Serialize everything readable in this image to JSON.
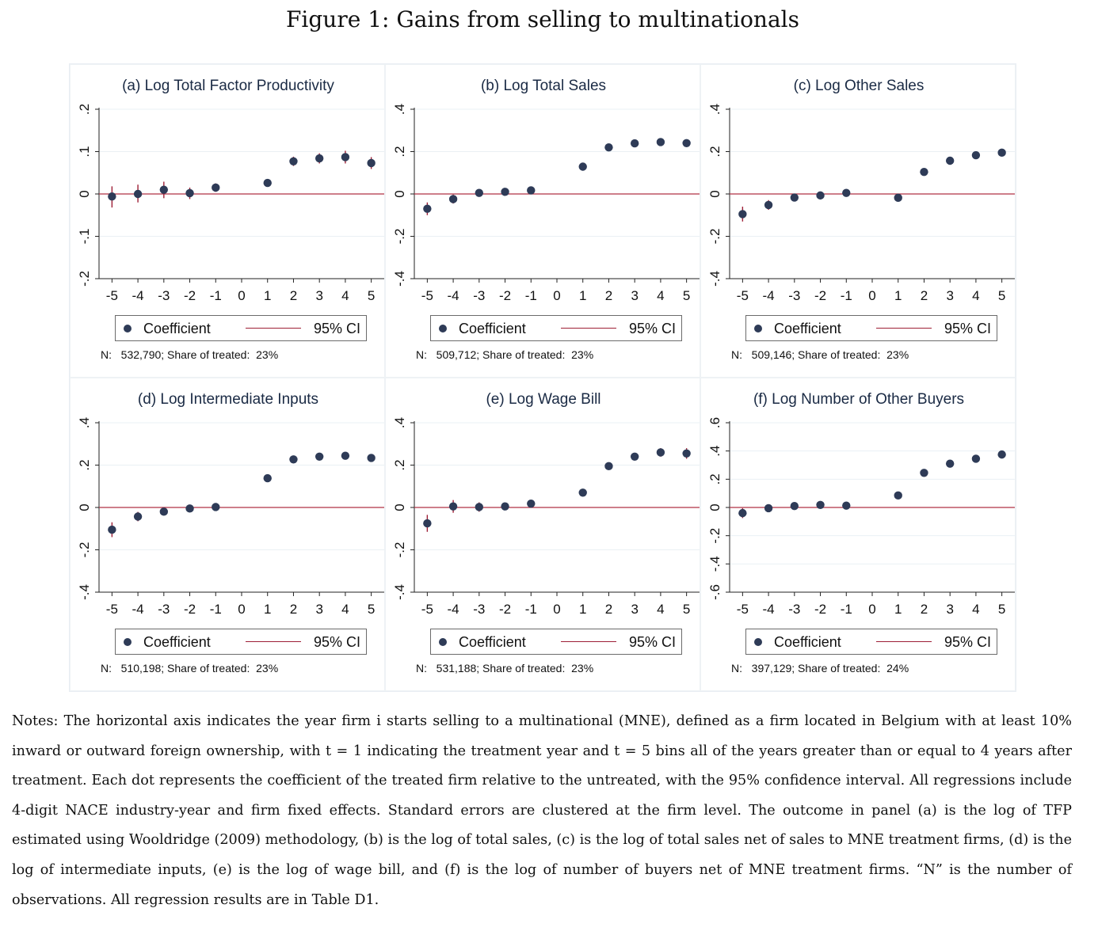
{
  "figure_title": "Figure 1:  Gains from selling to multinationals",
  "legend": {
    "coef_label": "Coefficient",
    "ci_label": "95% CI"
  },
  "colors": {
    "marker": "#2e3b57",
    "ci": "#9e1f36",
    "zero_line": "#b03045",
    "grid": "#eaf0f4"
  },
  "chart_data": [
    {
      "type": "scatter",
      "title": "(a) Log Total Factor Productivity",
      "x": [
        -5,
        -4,
        -3,
        -2,
        -1,
        1,
        2,
        3,
        4,
        5
      ],
      "xticks": [
        -5,
        -4,
        -3,
        -2,
        -1,
        0,
        1,
        2,
        3,
        4,
        5
      ],
      "ylim": [
        -0.2,
        0.2
      ],
      "yticks": [
        -0.2,
        -0.1,
        0,
        0.1,
        0.2
      ],
      "ytick_labels": [
        "-.2",
        "-.1",
        "0",
        ".1",
        ".2"
      ],
      "series": [
        {
          "name": "Coefficient",
          "values": [
            -0.006,
            0.0,
            0.01,
            0.002,
            0.015,
            0.026,
            0.077,
            0.084,
            0.087,
            0.073
          ]
        },
        {
          "name": "95% CI",
          "low": [
            -0.032,
            -0.02,
            -0.01,
            -0.012,
            0.005,
            0.018,
            0.066,
            0.072,
            0.072,
            0.059
          ],
          "high": [
            0.018,
            0.022,
            0.029,
            0.015,
            0.025,
            0.034,
            0.088,
            0.096,
            0.102,
            0.087
          ]
        }
      ],
      "note": "N:   532,790; Share of treated:  23%"
    },
    {
      "type": "scatter",
      "title": "(b) Log Total Sales",
      "x": [
        -5,
        -4,
        -3,
        -2,
        -1,
        1,
        2,
        3,
        4,
        5
      ],
      "xticks": [
        -5,
        -4,
        -3,
        -2,
        -1,
        0,
        1,
        2,
        3,
        4,
        5
      ],
      "ylim": [
        -0.4,
        0.4
      ],
      "yticks": [
        -0.4,
        -0.2,
        0,
        0.2,
        0.4
      ],
      "ytick_labels": [
        "-.4",
        "-.2",
        "0",
        ".2",
        ".4"
      ],
      "series": [
        {
          "name": "Coefficient",
          "values": [
            -0.07,
            -0.024,
            0.005,
            0.01,
            0.017,
            0.129,
            0.22,
            0.239,
            0.245,
            0.24
          ]
        },
        {
          "name": "95% CI",
          "low": [
            -0.1,
            -0.045,
            -0.005,
            0.002,
            0.008,
            0.118,
            0.208,
            0.227,
            0.232,
            0.227
          ],
          "high": [
            -0.04,
            -0.003,
            0.015,
            0.018,
            0.026,
            0.14,
            0.232,
            0.251,
            0.258,
            0.253
          ]
        }
      ],
      "note": "N:   509,712; Share of treated:  23%"
    },
    {
      "type": "scatter",
      "title": "(c) Log Other Sales",
      "x": [
        -5,
        -4,
        -3,
        -2,
        -1,
        1,
        2,
        3,
        4,
        5
      ],
      "xticks": [
        -5,
        -4,
        -3,
        -2,
        -1,
        0,
        1,
        2,
        3,
        4,
        5
      ],
      "ylim": [
        -0.4,
        0.4
      ],
      "yticks": [
        -0.4,
        -0.2,
        0,
        0.2,
        0.4
      ],
      "ytick_labels": [
        "-.4",
        "-.2",
        "0",
        ".2",
        ".4"
      ],
      "series": [
        {
          "name": "Coefficient",
          "values": [
            -0.095,
            -0.052,
            -0.017,
            -0.007,
            0.005,
            -0.018,
            0.104,
            0.157,
            0.183,
            0.195
          ]
        },
        {
          "name": "95% CI",
          "low": [
            -0.13,
            -0.075,
            -0.03,
            -0.016,
            -0.004,
            -0.03,
            0.092,
            0.145,
            0.17,
            0.182
          ],
          "high": [
            -0.06,
            -0.029,
            -0.004,
            0.002,
            0.014,
            -0.006,
            0.116,
            0.169,
            0.196,
            0.208
          ]
        }
      ],
      "note": "N:   509,146; Share of treated:  23%"
    },
    {
      "type": "scatter",
      "title": "(d) Log Intermediate Inputs",
      "x": [
        -5,
        -4,
        -3,
        -2,
        -1,
        1,
        2,
        3,
        4,
        5
      ],
      "xticks": [
        -5,
        -4,
        -3,
        -2,
        -1,
        0,
        1,
        2,
        3,
        4,
        5
      ],
      "ylim": [
        -0.4,
        0.4
      ],
      "yticks": [
        -0.4,
        -0.2,
        0,
        0.2,
        0.4
      ],
      "ytick_labels": [
        "-.4",
        "-.2",
        "0",
        ".2",
        ".4"
      ],
      "series": [
        {
          "name": "Coefficient",
          "values": [
            -0.105,
            -0.043,
            -0.02,
            -0.005,
            0.002,
            0.138,
            0.227,
            0.24,
            0.244,
            0.234
          ]
        },
        {
          "name": "95% CI",
          "low": [
            -0.14,
            -0.065,
            -0.033,
            -0.013,
            -0.006,
            0.127,
            0.216,
            0.228,
            0.231,
            0.221
          ],
          "high": [
            -0.07,
            -0.021,
            -0.007,
            0.003,
            0.01,
            0.149,
            0.238,
            0.252,
            0.257,
            0.247
          ]
        }
      ],
      "note": "N:   510,198; Share of treated:  23%"
    },
    {
      "type": "scatter",
      "title": "(e) Log Wage Bill",
      "x": [
        -5,
        -4,
        -3,
        -2,
        -1,
        1,
        2,
        3,
        4,
        5
      ],
      "xticks": [
        -5,
        -4,
        -3,
        -2,
        -1,
        0,
        1,
        2,
        3,
        4,
        5
      ],
      "ylim": [
        -0.4,
        0.4
      ],
      "yticks": [
        -0.4,
        -0.2,
        0,
        0.2,
        0.4
      ],
      "ytick_labels": [
        "-.4",
        "-.2",
        "0",
        ".2",
        ".4"
      ],
      "series": [
        {
          "name": "Coefficient",
          "values": [
            -0.075,
            0.005,
            0.002,
            0.005,
            0.018,
            0.07,
            0.195,
            0.24,
            0.26,
            0.255
          ]
        },
        {
          "name": "95% CI",
          "low": [
            -0.115,
            -0.025,
            -0.02,
            -0.01,
            0.008,
            0.058,
            0.182,
            0.225,
            0.24,
            0.23
          ],
          "high": [
            -0.035,
            0.035,
            0.024,
            0.02,
            0.028,
            0.082,
            0.208,
            0.255,
            0.28,
            0.28
          ]
        }
      ],
      "note": "N:   531,188; Share of treated:  23%"
    },
    {
      "type": "scatter",
      "title": "(f) Log Number of Other Buyers",
      "x": [
        -5,
        -4,
        -3,
        -2,
        -1,
        1,
        2,
        3,
        4,
        5
      ],
      "xticks": [
        -5,
        -4,
        -3,
        -2,
        -1,
        0,
        1,
        2,
        3,
        4,
        5
      ],
      "ylim": [
        -0.6,
        0.6
      ],
      "yticks": [
        -0.6,
        -0.4,
        -0.2,
        0,
        0.2,
        0.4,
        0.6
      ],
      "ytick_labels": [
        "-.6",
        "-.4",
        "-.2",
        "0",
        ".2",
        ".4",
        ".6"
      ],
      "series": [
        {
          "name": "Coefficient",
          "values": [
            -0.04,
            -0.005,
            0.01,
            0.018,
            0.013,
            0.085,
            0.245,
            0.31,
            0.345,
            0.375
          ]
        },
        {
          "name": "95% CI",
          "low": [
            -0.075,
            -0.025,
            -0.002,
            0.008,
            0.004,
            0.073,
            0.233,
            0.297,
            0.331,
            0.36
          ],
          "high": [
            -0.005,
            0.015,
            0.022,
            0.028,
            0.022,
            0.097,
            0.257,
            0.323,
            0.359,
            0.39
          ]
        }
      ],
      "note": "N:   397,129; Share of treated:  24%"
    }
  ],
  "notes": "Notes: The horizontal axis indicates the year firm i starts selling to a multinational (MNE), defined as a firm located in Belgium with at least 10% inward or outward foreign ownership, with t = 1 indicating the treatment year and t = 5 bins all of the years greater than or equal to 4 years after treatment. Each dot represents the coefficient of the treated firm relative to the untreated, with the 95% confidence interval. All regressions include 4-digit NACE industry-year and firm fixed effects. Standard errors are clustered at the firm level. The outcome in panel (a) is the log of TFP estimated using Wooldridge (2009) methodology, (b) is the log of total sales, (c) is the log of total sales net of sales to MNE treatment firms, (d) is the log of intermediate inputs, (e) is the log of wage bill, and (f) is the log of number of buyers net of MNE treatment firms. “N” is the number of observations. All regression results are in Table D1."
}
